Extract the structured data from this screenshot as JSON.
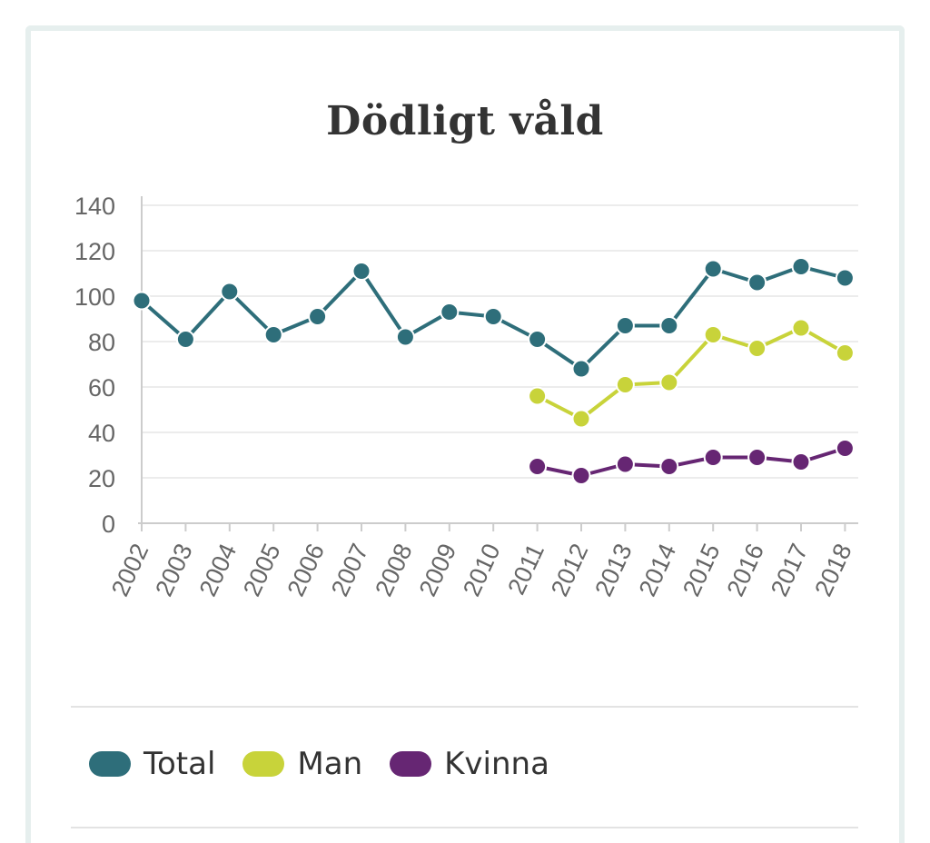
{
  "chart_data": {
    "type": "line",
    "title": "Dödligt våld",
    "categories": [
      "2002",
      "2003",
      "2004",
      "2005",
      "2006",
      "2007",
      "2008",
      "2009",
      "2010",
      "2011",
      "2012",
      "2013",
      "2014",
      "2015",
      "2016",
      "2017",
      "2018"
    ],
    "y_ticks": [
      0,
      20,
      40,
      60,
      80,
      100,
      120,
      140
    ],
    "ylim": [
      0,
      140
    ],
    "xlabel": "",
    "ylabel": "",
    "grid": true,
    "legend_position": "bottom",
    "series": [
      {
        "name": "Total",
        "color": "#2e6e7a",
        "values": [
          98,
          81,
          102,
          83,
          91,
          111,
          82,
          93,
          91,
          81,
          68,
          87,
          87,
          112,
          106,
          113,
          108
        ]
      },
      {
        "name": "Man",
        "color": "#c8d33a",
        "values": [
          null,
          null,
          null,
          null,
          null,
          null,
          null,
          null,
          null,
          56,
          46,
          61,
          62,
          83,
          77,
          86,
          75
        ]
      },
      {
        "name": "Kvinna",
        "color": "#662673",
        "values": [
          null,
          null,
          null,
          null,
          null,
          null,
          null,
          null,
          null,
          25,
          21,
          26,
          25,
          29,
          29,
          27,
          33
        ]
      }
    ]
  }
}
